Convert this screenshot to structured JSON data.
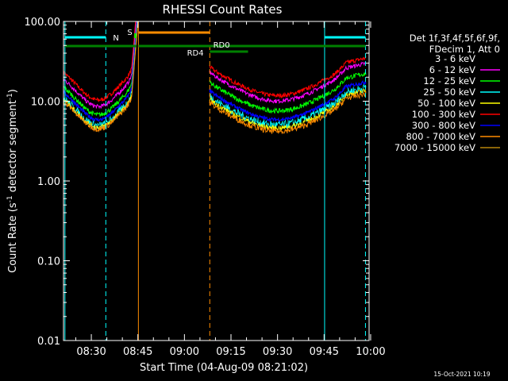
{
  "chart_data": {
    "type": "line",
    "title": "RHESSI Count Rates",
    "xlabel": "Start Time (04-Aug-09 08:21:02)",
    "ylabel_main": "Count Rate (s",
    "ylabel_exp1": "-1",
    "ylabel_mid": " detector segment",
    "ylabel_exp2": "-1",
    "ylabel_end": ")",
    "yscale": "log",
    "ylim": [
      0.01,
      100
    ],
    "xlim": [
      "08:21:02",
      "09:59:30"
    ],
    "y_ticks": [
      "100.00",
      "10.00",
      "1.00",
      "0.10",
      "0.01"
    ],
    "x_ticks": [
      "08:30",
      "08:45",
      "09:00",
      "09:15",
      "09:30",
      "09:45",
      "10:00"
    ],
    "legend_header": [
      "Det 1f,3f,4f,5f,6f,9f,",
      "FDecim 1, Att 0"
    ],
    "legend_position": "right",
    "series": [
      {
        "name": "3 - 6 keV",
        "color": "#000000"
      },
      {
        "name": "6 - 12 keV",
        "color": "#ff00ff"
      },
      {
        "name": "12 - 25 keV",
        "color": "#00ff00"
      },
      {
        "name": "25 - 50 keV",
        "color": "#00ffff"
      },
      {
        "name": "50 - 100 keV",
        "color": "#ffff00"
      },
      {
        "name": "100 - 300 keV",
        "color": "#ff0000"
      },
      {
        "name": "300 - 800 keV",
        "color": "#0000ff"
      },
      {
        "name": "800 - 7000 keV",
        "color": "#ff8c00"
      },
      {
        "name": "7000 - 15000 keV",
        "color": "#b8860b"
      }
    ],
    "annotations": {
      "N": "N",
      "S": "S",
      "RD0": "RD0",
      "RD4": "RD4"
    },
    "timestamp": "15-Oct-2021 10:19"
  }
}
